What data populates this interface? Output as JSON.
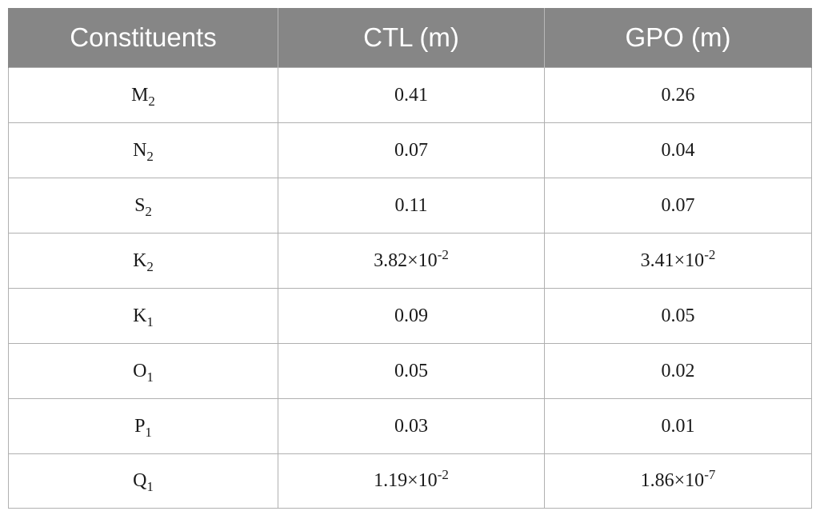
{
  "table": {
    "headers": [
      "Constituents",
      "CTL (m)",
      "GPO (m)"
    ],
    "rows": [
      {
        "name": "M",
        "sub": "2",
        "ctl": "0.41",
        "gpo": "0.26"
      },
      {
        "name": "N",
        "sub": "2",
        "ctl": "0.07",
        "gpo": "0.04"
      },
      {
        "name": "S",
        "sub": "2",
        "ctl": "0.11",
        "gpo": "0.07"
      },
      {
        "name": "K",
        "sub": "2",
        "ctl_base": "3.82×10",
        "ctl_exp": "-2",
        "gpo_base": "3.41×10",
        "gpo_exp": "-2"
      },
      {
        "name": "K",
        "sub": "1",
        "ctl": "0.09",
        "gpo": "0.05"
      },
      {
        "name": "O",
        "sub": "1",
        "ctl": "0.05",
        "gpo": "0.02"
      },
      {
        "name": "P",
        "sub": "1",
        "ctl": "0.03",
        "gpo": "0.01"
      },
      {
        "name": "Q",
        "sub": "1",
        "ctl_base": "1.19×10",
        "ctl_exp": "-2",
        "gpo_base": "1.86×10",
        "gpo_exp": "-7"
      }
    ]
  }
}
